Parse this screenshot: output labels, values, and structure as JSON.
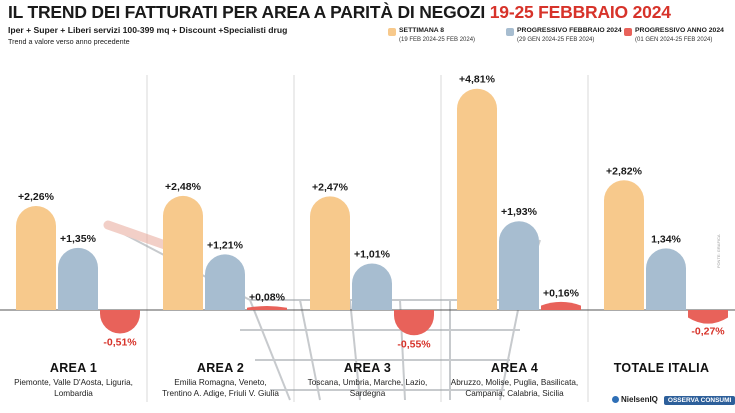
{
  "header": {
    "title_main": "IL TREND DEI FATTURATI PER AREA A PARITÀ DI NEGOZI",
    "title_period": "19-25 FEBBRAIO 2024",
    "subtitle": "Iper + Super + Liberi servizi 100-399 mq + Discount +Specialisti drug",
    "note": "Trend a valore verso anno precedente"
  },
  "legend": [
    {
      "name": "SETTIMANA 8",
      "range": "(19 FEB 2024-25 FEB 2024)",
      "color": "#f7c98c"
    },
    {
      "name": "PROGRESSIVO FEBBRAIO 2024",
      "range": "(29 GEN 2024-25 FEB 2024)",
      "color": "#a7bdd0"
    },
    {
      "name": "PROGRESSIVO ANNO 2024",
      "range": "(01 GEN 2024-25 FEB 2024)",
      "color": "#e8625a"
    }
  ],
  "chart_data": {
    "type": "bar",
    "unit": "%",
    "title": "IL TREND DEI FATTURATI PER AREA A PARITÀ DI NEGOZI 19-25 FEBBRAIO 2024",
    "categories": [
      "AREA 1",
      "AREA 2",
      "AREA 3",
      "AREA 4",
      "TOTALE ITALIA"
    ],
    "category_details": [
      [
        "Piemonte, Valle D'Aosta, Liguria,",
        "Lombardia"
      ],
      [
        "Emilia Romagna, Veneto,",
        "Trentino A. Adige, Friuli V. Giulia"
      ],
      [
        "Toscana, Umbria, Marche, Lazio,",
        "Sardegna"
      ],
      [
        "Abruzzo, Molise, Puglia, Basilicata,",
        "Campania, Calabria, Sicilia"
      ],
      []
    ],
    "series": [
      {
        "name": "SETTIMANA 8",
        "values": [
          2.26,
          2.48,
          2.47,
          4.81,
          2.82
        ],
        "labels": [
          "+2,26%",
          "+2,48%",
          "+2,47%",
          "+4,81%",
          "+2,82%"
        ]
      },
      {
        "name": "PROGRESSIVO FEBBRAIO 2024",
        "values": [
          1.35,
          1.21,
          1.01,
          1.93,
          1.34
        ],
        "labels": [
          "+1,35%",
          "+1,21%",
          "+1,01%",
          "+1,93%",
          "1,34%"
        ]
      },
      {
        "name": "PROGRESSIVO ANNO 2024",
        "values": [
          -0.51,
          0.08,
          -0.55,
          0.16,
          -0.27
        ],
        "labels": [
          "-0,51%",
          "+0,08%",
          "-0,55%",
          "+0,16%",
          "-0,27%"
        ]
      }
    ],
    "grid": false,
    "legend_position": "top-right"
  },
  "footer": {
    "brand_nielsen": "NielsenIQ",
    "brand_oc": "OSSERVA CONSUMI",
    "credit": "FONTE: GRAFICA"
  }
}
